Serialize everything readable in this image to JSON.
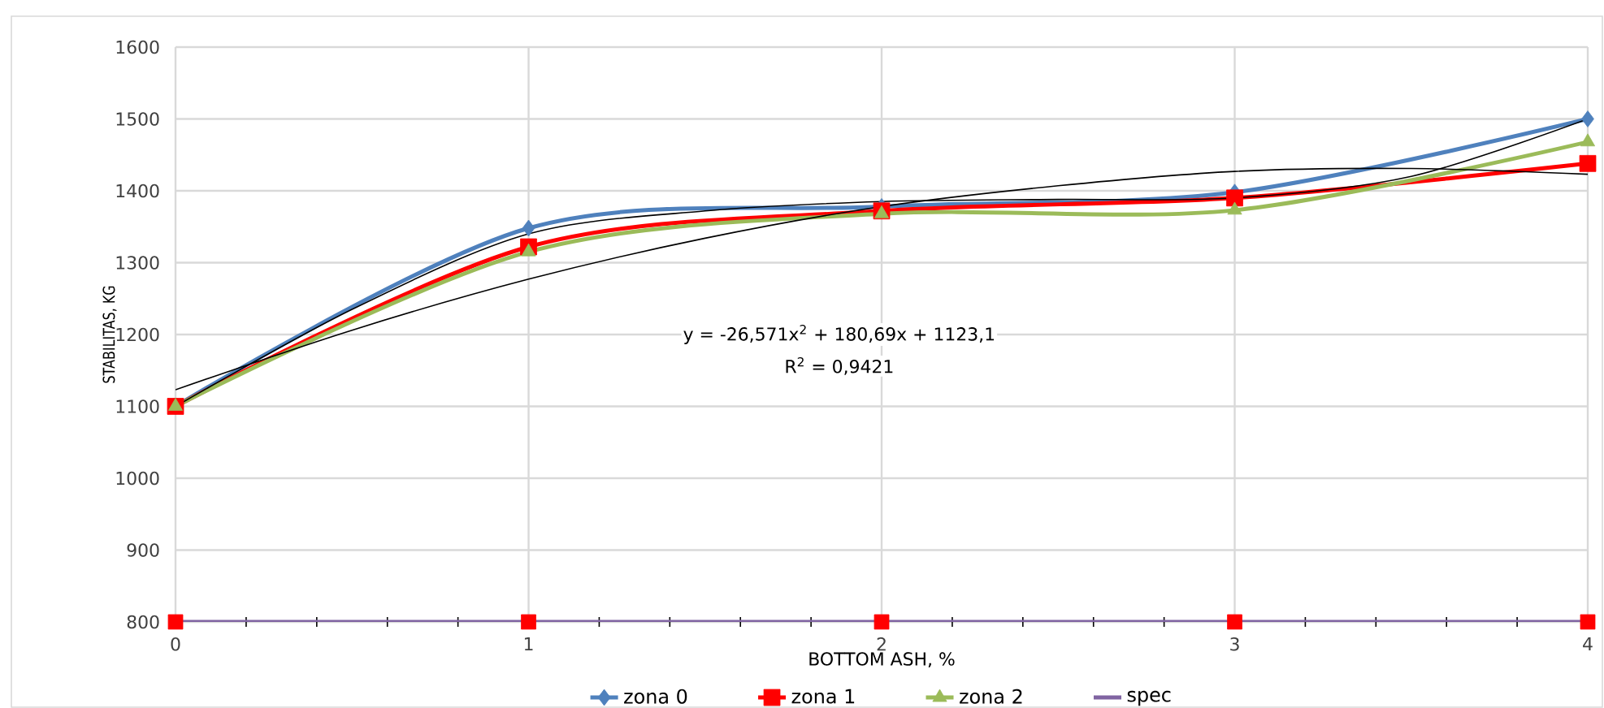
{
  "chart_data": {
    "type": "line",
    "xlabel": "BOTTOM ASH, %",
    "ylabel": "STABILITAS, KG",
    "x": [
      0,
      1,
      2,
      3,
      4
    ],
    "series": [
      {
        "name": "zona 0",
        "color": "#4f81bd",
        "marker": "diamond",
        "values": [
          1100,
          1348,
          1378,
          1398,
          1500
        ]
      },
      {
        "name": "zona 1",
        "color": "#ff0000",
        "marker": "square",
        "values": [
          1100,
          1322,
          1372,
          1390,
          1438
        ]
      },
      {
        "name": "zona 2",
        "color": "#9bbb59",
        "marker": "triangle",
        "values": [
          1100,
          1315,
          1368,
          1373,
          1468
        ]
      },
      {
        "name": "spec",
        "color": "#8064a2",
        "marker": "square",
        "colors": [
          "#ff0000",
          "#ff0000",
          "#ff0000",
          "#ff0000",
          "#ff0000"
        ],
        "values": [
          800,
          800,
          800,
          800,
          800
        ]
      },
      {
        "color": "#000000",
        "marker": "none",
        "x": [
          0,
          0.5,
          1,
          1.5,
          2,
          2.5,
          3,
          3.5,
          4
        ],
        "values": [
          1123,
          1206,
          1277,
          1334,
          1378,
          1407,
          1427,
          1431,
          1423
        ]
      },
      {
        "color": "#000000",
        "marker": "none",
        "x": [
          0,
          0.5,
          1,
          1.5,
          2,
          2.5,
          3,
          3.5,
          4
        ],
        "values": [
          1100,
          1235,
          1340,
          1372,
          1385,
          1388,
          1390,
          1420,
          1500
        ]
      }
    ],
    "xlim": [
      0,
      4
    ],
    "ylim": [
      800,
      1600
    ],
    "xticks": [
      0,
      {
        "value": 0.2,
        "label": null
      },
      {
        "value": 0.4,
        "label": null
      },
      {
        "value": 0.6,
        "label": null
      },
      {
        "value": 0.8,
        "label": null
      },
      1,
      {
        "value": 1.2,
        "label": null
      },
      {
        "value": 1.4,
        "label": null
      },
      {
        "value": 1.6,
        "label": null
      },
      {
        "value": 1.8,
        "label": null
      },
      2,
      {
        "value": 2.2,
        "label": null
      },
      {
        "value": 2.4,
        "label": null
      },
      {
        "value": 2.6,
        "label": null
      },
      {
        "value": 2.8,
        "label": null
      },
      3,
      {
        "value": 3.2,
        "label": null
      },
      {
        "value": 3.4,
        "label": null
      },
      {
        "value": 3.6,
        "label": null
      },
      {
        "value": 3.8,
        "label": null
      },
      4
    ],
    "yticks": [
      800,
      900,
      1000,
      1100,
      1200,
      1300,
      1400,
      1500,
      1600
    ],
    "annotations": [
      "y = -26,571x$^{2}$ + 180,69x + 1123,1",
      "R$^{2}$ = 0,9421"
    ],
    "grid": true,
    "legend": "bottom",
    "line_style": "solid"
  }
}
